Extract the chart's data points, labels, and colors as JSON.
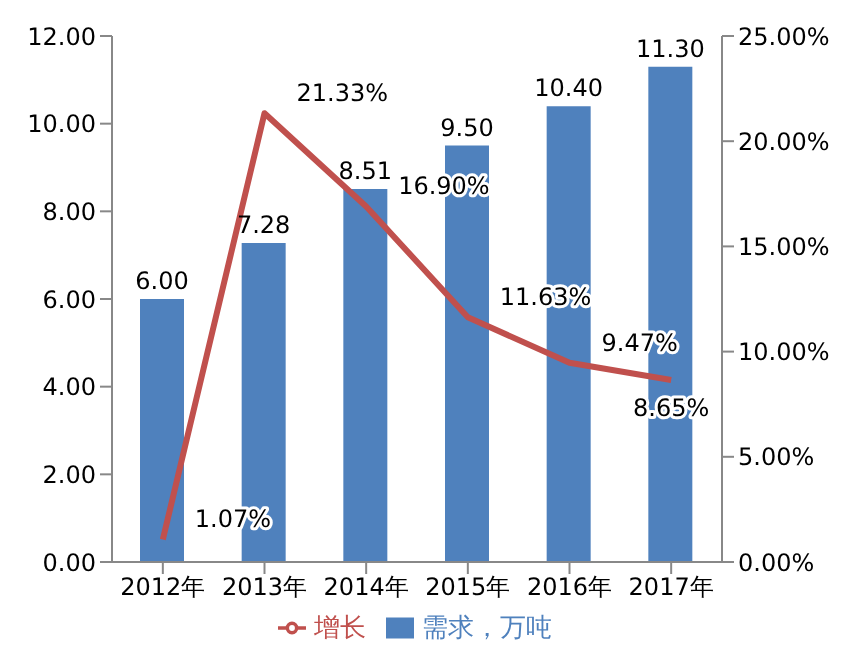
{
  "chart_data": {
    "type": "bar",
    "categories": [
      "2012年",
      "2013年",
      "2014年",
      "2015年",
      "2016年",
      "2017年"
    ],
    "series": [
      {
        "name": "需求，万吨",
        "color": "#4f81bd",
        "values": [
          6.0,
          7.28,
          8.51,
          9.5,
          10.4,
          11.3
        ],
        "value_labels": [
          "6.00",
          "7.28",
          "8.51",
          "9.50",
          "10.40",
          "11.30"
        ]
      },
      {
        "name": "增长",
        "type": "line",
        "axis": "y2",
        "color": "#c0504d",
        "values": [
          1.07,
          21.33,
          16.9,
          11.63,
          9.47,
          8.65
        ],
        "value_labels": [
          "1.07%",
          "21.33%",
          "16.90%",
          "11.63%",
          "9.47%",
          "8.65%"
        ]
      }
    ],
    "ylim": [
      0,
      12
    ],
    "yticks": [
      {
        "value": 0,
        "label": "0.00"
      },
      {
        "value": 2,
        "label": "2.00"
      },
      {
        "value": 4,
        "label": "4.00"
      },
      {
        "value": 6,
        "label": "6.00"
      },
      {
        "value": 8,
        "label": "8.00"
      },
      {
        "value": 10,
        "label": "10.00"
      },
      {
        "value": 12,
        "label": "12.00"
      }
    ],
    "y2lim": [
      0,
      25
    ],
    "y2ticks": [
      {
        "value": 0,
        "label": "0.00%"
      },
      {
        "value": 5,
        "label": "5.00%"
      },
      {
        "value": 10,
        "label": "10.00%"
      },
      {
        "value": 15,
        "label": "15.00%"
      },
      {
        "value": 20,
        "label": "20.00%"
      },
      {
        "value": 25,
        "label": "25.00%"
      }
    ],
    "legend": "bottom",
    "marker": "none"
  }
}
